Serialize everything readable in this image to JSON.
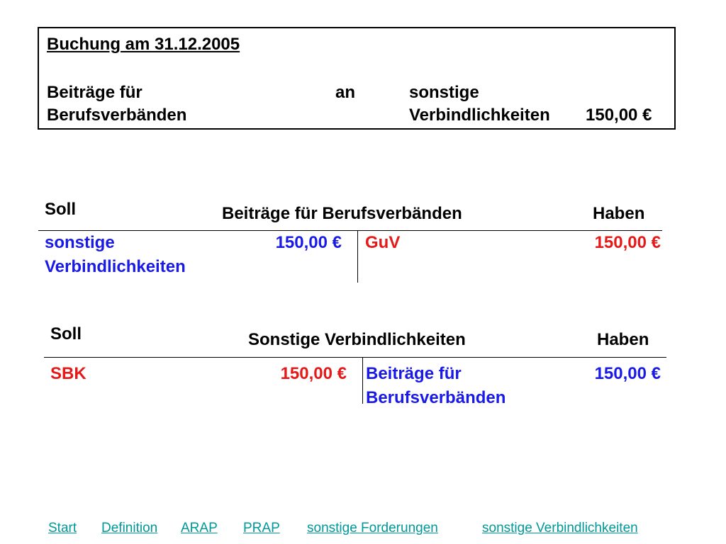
{
  "booking": {
    "title": "Buchung am 31.12.2005",
    "debit_line1": "Beiträge für",
    "debit_line2": "Berufsverbänden",
    "connector": "an",
    "credit_line1": "sonstige",
    "credit_line2": "Verbindlichkeiten",
    "amount": "150,00 €"
  },
  "accounts": [
    {
      "soll_label": "Soll",
      "name": "Beiträge für Berufsverbänden",
      "haben_label": "Haben",
      "debit": {
        "line1": "sonstige",
        "line2": "Verbindlichkeiten",
        "amount": "150,00 €",
        "color": "#1a1ae6"
      },
      "credit": {
        "line1": "GuV",
        "line2": "",
        "amount": "150,00 €",
        "color": "#e61919"
      }
    },
    {
      "soll_label": "Soll",
      "name": "Sonstige Verbindlichkeiten",
      "haben_label": "Haben",
      "debit": {
        "line1": "SBK",
        "line2": "",
        "amount": "150,00 €",
        "color": "#e61919"
      },
      "credit": {
        "line1": "Beiträge für",
        "line2": "Berufsverbänden",
        "amount": "150,00 €",
        "color": "#1a1ae6"
      }
    }
  ],
  "nav": {
    "start": "Start",
    "definition": "Definition",
    "arap": "ARAP",
    "prap": "PRAP",
    "sonstige_forderungen": "sonstige Forderungen",
    "sonstige_verbindlichkeiten": "sonstige Verbindlichkeiten",
    "link_color": "#009999"
  }
}
